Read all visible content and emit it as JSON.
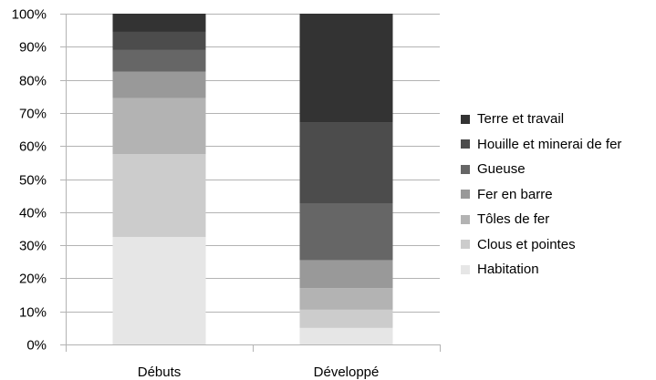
{
  "chart_data": {
    "type": "bar",
    "stacked": true,
    "percent": true,
    "categories": [
      "Débuts",
      "Développé"
    ],
    "ylim": [
      0,
      100
    ],
    "yticks": [
      "0%",
      "10%",
      "20%",
      "30%",
      "40%",
      "50%",
      "60%",
      "70%",
      "80%",
      "90%",
      "100%"
    ],
    "grid": true,
    "legend_position": "right",
    "series": [
      {
        "name": "Habitation",
        "values": [
          32.5,
          5
        ],
        "color": "#e6e6e6"
      },
      {
        "name": "Clous et pointes",
        "values": [
          25,
          5.5
        ],
        "color": "#cccccc"
      },
      {
        "name": "Tôles de fer",
        "values": [
          17,
          6.5
        ],
        "color": "#b3b3b3"
      },
      {
        "name": "Fer en barre",
        "values": [
          8,
          8.5
        ],
        "color": "#999999"
      },
      {
        "name": "Gueuse",
        "values": [
          6.5,
          17
        ],
        "color": "#666666"
      },
      {
        "name": "Houille et minerai de fer",
        "values": [
          5.5,
          24.5
        ],
        "color": "#4c4c4c"
      },
      {
        "name": "Terre et travail",
        "values": [
          5.5,
          33
        ],
        "color": "#333333"
      }
    ]
  }
}
